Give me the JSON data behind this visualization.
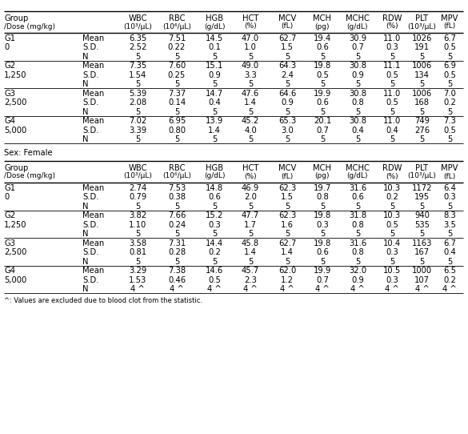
{
  "footnote": "^: Values are excluded due to blood clot from the statistic.",
  "male_data": [
    {
      "group": "G1",
      "dose": "0",
      "stat": "Mean",
      "values": [
        "6.35",
        "7.51",
        "14.5",
        "47.0",
        "62.7",
        "19.4",
        "30.9",
        "11.0",
        "1026",
        "6.7"
      ]
    },
    {
      "group": "",
      "dose": "",
      "stat": "S.D.",
      "values": [
        "2.52",
        "0.22",
        "0.1",
        "1.0",
        "1.5",
        "0.6",
        "0.7",
        "0.3",
        "191",
        "0.5"
      ]
    },
    {
      "group": "",
      "dose": "",
      "stat": "N",
      "values": [
        "5",
        "5",
        "5",
        "5",
        "5",
        "5",
        "5",
        "5",
        "5",
        "5"
      ]
    },
    {
      "group": "G2",
      "dose": "1,250",
      "stat": "Mean",
      "values": [
        "7.35",
        "7.60",
        "15.1",
        "49.0",
        "64.3",
        "19.8",
        "30.8",
        "11.1",
        "1006",
        "6.9"
      ]
    },
    {
      "group": "",
      "dose": "",
      "stat": "S.D.",
      "values": [
        "1.54",
        "0.25",
        "0.9",
        "3.3",
        "2.4",
        "0.5",
        "0.9",
        "0.5",
        "134",
        "0.5"
      ]
    },
    {
      "group": "",
      "dose": "",
      "stat": "N",
      "values": [
        "5",
        "5",
        "5",
        "5",
        "5",
        "5",
        "5",
        "5",
        "5",
        "5"
      ]
    },
    {
      "group": "G3",
      "dose": "2,500",
      "stat": "Mean",
      "values": [
        "5.39",
        "7.37",
        "14.7",
        "47.6",
        "64.6",
        "19.9",
        "30.8",
        "11.0",
        "1006",
        "7.0"
      ]
    },
    {
      "group": "",
      "dose": "",
      "stat": "S.D.",
      "values": [
        "2.08",
        "0.14",
        "0.4",
        "1.4",
        "0.9",
        "0.6",
        "0.8",
        "0.5",
        "168",
        "0.2"
      ]
    },
    {
      "group": "",
      "dose": "",
      "stat": "N",
      "values": [
        "5",
        "5",
        "5",
        "5",
        "5",
        "5",
        "5",
        "5",
        "5",
        "5"
      ]
    },
    {
      "group": "G4",
      "dose": "5,000",
      "stat": "Mean",
      "values": [
        "7.02",
        "6.95",
        "13.9",
        "45.2",
        "65.3",
        "20.1",
        "30.8",
        "11.0",
        "749",
        "7.3"
      ]
    },
    {
      "group": "",
      "dose": "",
      "stat": "S.D.",
      "values": [
        "3.39",
        "0.80",
        "1.4",
        "4.0",
        "3.0",
        "0.7",
        "0.4",
        "0.4",
        "276",
        "0.5"
      ]
    },
    {
      "group": "",
      "dose": "",
      "stat": "N",
      "values": [
        "5",
        "5",
        "5",
        "5",
        "5",
        "5",
        "5",
        "5",
        "5",
        "5"
      ]
    }
  ],
  "female_data": [
    {
      "group": "G1",
      "dose": "0",
      "stat": "Mean",
      "values": [
        "2.74",
        "7.53",
        "14.8",
        "46.9",
        "62.3",
        "19.7",
        "31.6",
        "10.3",
        "1172",
        "6.4"
      ]
    },
    {
      "group": "",
      "dose": "",
      "stat": "S.D.",
      "values": [
        "0.79",
        "0.38",
        "0.6",
        "2.0",
        "1.5",
        "0.8",
        "0.6",
        "0.2",
        "195",
        "0.3"
      ]
    },
    {
      "group": "",
      "dose": "",
      "stat": "N",
      "values": [
        "5",
        "5",
        "5",
        "5",
        "5",
        "5",
        "5",
        "5",
        "5",
        "5"
      ]
    },
    {
      "group": "G2",
      "dose": "1,250",
      "stat": "Mean",
      "values": [
        "3.82",
        "7.66",
        "15.2",
        "47.7",
        "62.3",
        "19.8",
        "31.8",
        "10.3",
        "940",
        "8.3"
      ]
    },
    {
      "group": "",
      "dose": "",
      "stat": "S.D.",
      "values": [
        "1.10",
        "0.24",
        "0.3",
        "1.7",
        "1.6",
        "0.3",
        "0.8",
        "0.5",
        "535",
        "3.5"
      ]
    },
    {
      "group": "",
      "dose": "",
      "stat": "N",
      "values": [
        "5",
        "5",
        "5",
        "5",
        "5",
        "5",
        "5",
        "5",
        "5",
        "5"
      ]
    },
    {
      "group": "G3",
      "dose": "2,500",
      "stat": "Mean",
      "values": [
        "3.58",
        "7.31",
        "14.4",
        "45.8",
        "62.7",
        "19.8",
        "31.6",
        "10.4",
        "1163",
        "6.7"
      ]
    },
    {
      "group": "",
      "dose": "",
      "stat": "S.D.",
      "values": [
        "0.81",
        "0.28",
        "0.2",
        "1.4",
        "1.4",
        "0.6",
        "0.8",
        "0.3",
        "167",
        "0.4"
      ]
    },
    {
      "group": "",
      "dose": "",
      "stat": "N",
      "values": [
        "5",
        "5",
        "5",
        "5",
        "5",
        "5",
        "5",
        "5",
        "5",
        "5"
      ]
    },
    {
      "group": "G4",
      "dose": "5,000",
      "stat": "Mean",
      "values": [
        "3.29",
        "7.38",
        "14.6",
        "45.7",
        "62.0",
        "19.9",
        "32.0",
        "10.5",
        "1000",
        "6.5"
      ]
    },
    {
      "group": "",
      "dose": "",
      "stat": "S.D.",
      "values": [
        "1.53",
        "0.46",
        "0.5",
        "2.3",
        "1.2",
        "0.7",
        "0.9",
        "0.3",
        "107",
        "0.2"
      ]
    },
    {
      "group": "",
      "dose": "",
      "stat": "N",
      "values": [
        "4 ^",
        "4 ^",
        "4 ^",
        "4 ^",
        "4 ^",
        "4 ^",
        "4 ^",
        "4 ^",
        "4 ^",
        "4 ^"
      ]
    }
  ],
  "col_labels_top": [
    "WBC",
    "RBC",
    "HGB",
    "HCT",
    "MCV",
    "MCH",
    "MCHC",
    "RDW",
    "PLT",
    "MPV"
  ],
  "col_labels_bot": [
    "(10³/µL)",
    "(10⁶/µL)",
    "(g/dL)",
    "(%)",
    "(fL)",
    "(pg)",
    "(g/dL)",
    "(%)",
    "(10³/µL)",
    "(fL)"
  ],
  "bg_color": "#ffffff"
}
